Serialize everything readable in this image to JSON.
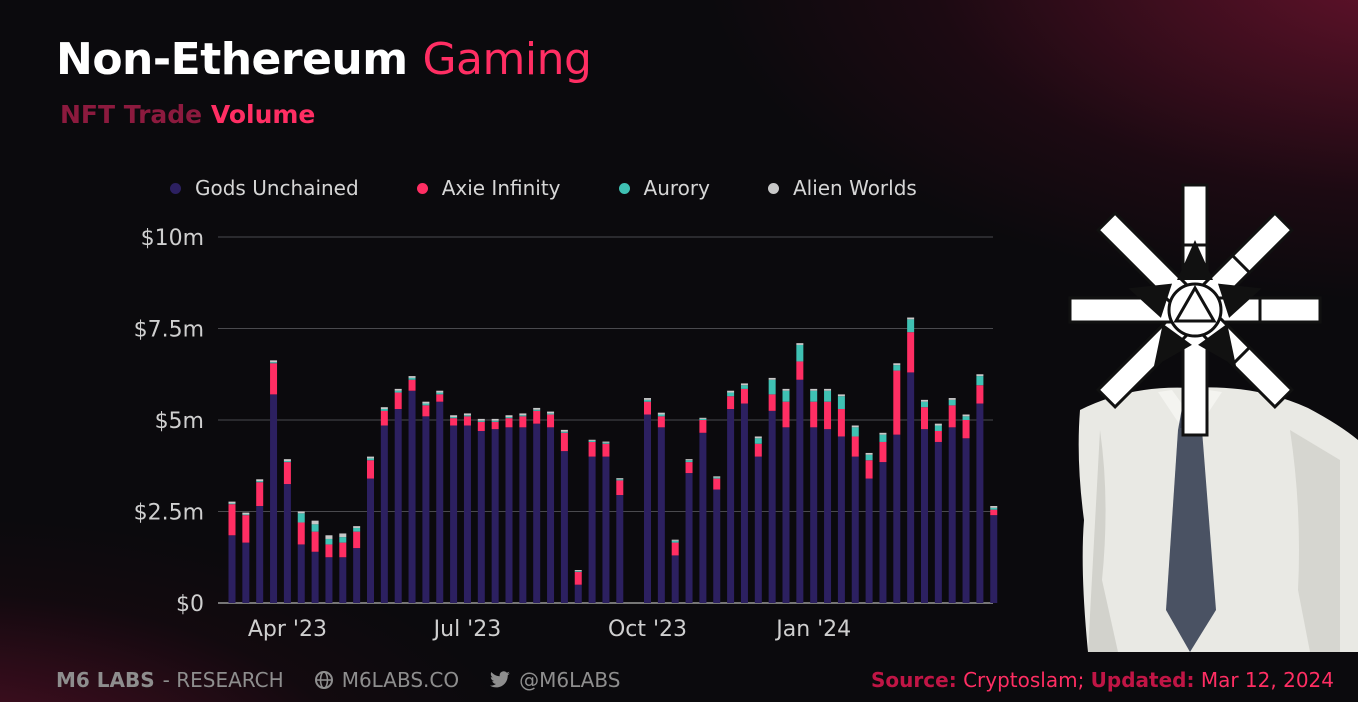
{
  "header": {
    "title_main": "Non-Ethereum",
    "title_accent": "Gaming",
    "subtitle_main": "NFT Trade",
    "subtitle_accent": "Volume"
  },
  "colors": {
    "gods_unchained": "#2c2060",
    "axie_infinity": "#ff2e63",
    "aurory": "#3fc1b3",
    "alien_worlds": "#c8c8c8"
  },
  "footer": {
    "brand": "M6 LABS",
    "brand_suffix": "- RESEARCH",
    "website": "M6LABS.CO",
    "twitter": "@M6LABS",
    "source_label": "Source:",
    "source_value": "Cryptoslam;",
    "updated_label": "Updated:",
    "updated_value": "Mar 12, 2024"
  },
  "mascot": {
    "icon": "star-head-figure-icon"
  },
  "chart_data": {
    "type": "bar",
    "stacked": true,
    "grid": true,
    "legend_position": "top",
    "ylim": [
      0,
      10
    ],
    "y_ticks": [
      {
        "value": 0,
        "label": "$0"
      },
      {
        "value": 2.5,
        "label": "$2.5m"
      },
      {
        "value": 5,
        "label": "$5m"
      },
      {
        "value": 7.5,
        "label": "$7.5m"
      },
      {
        "value": 10,
        "label": "$10m"
      }
    ],
    "x_ticks": [
      {
        "index": 4,
        "label": "Apr '23"
      },
      {
        "index": 17,
        "label": "Jul '23"
      },
      {
        "index": 30,
        "label": "Oct '23"
      },
      {
        "index": 42,
        "label": "Jan '24"
      }
    ],
    "series": [
      {
        "name": "Gods Unchained",
        "values": [
          1.85,
          1.65,
          2.65,
          5.7,
          3.25,
          1.6,
          1.4,
          1.25,
          1.25,
          1.5,
          3.4,
          4.85,
          5.3,
          5.8,
          5.1,
          5.5,
          4.85,
          4.85,
          4.7,
          4.75,
          4.8,
          4.8,
          4.9,
          4.8,
          4.15,
          0.5,
          4.0,
          4.0,
          2.95,
          0,
          5.15,
          4.8,
          1.3,
          3.55,
          4.65,
          3.1,
          5.3,
          5.45,
          4.0,
          5.25,
          4.8,
          6.1,
          4.8,
          4.75,
          4.55,
          4.0,
          3.4,
          3.85,
          4.6,
          6.3,
          4.75,
          4.4,
          4.8,
          4.5,
          5.45,
          2.4
        ]
      },
      {
        "name": "Axie Infinity",
        "values": [
          0.85,
          0.75,
          0.65,
          0.85,
          0.6,
          0.6,
          0.55,
          0.35,
          0.4,
          0.45,
          0.5,
          0.4,
          0.45,
          0.3,
          0.3,
          0.2,
          0.2,
          0.25,
          0.25,
          0.2,
          0.25,
          0.3,
          0.35,
          0.35,
          0.5,
          0.35,
          0.4,
          0.35,
          0.4,
          0,
          0.35,
          0.3,
          0.35,
          0.3,
          0.35,
          0.3,
          0.35,
          0.4,
          0.35,
          0.45,
          0.7,
          0.5,
          0.7,
          0.75,
          0.75,
          0.55,
          0.5,
          0.55,
          1.75,
          1.1,
          0.6,
          0.3,
          0.6,
          0.5,
          0.5,
          0.15
        ]
      },
      {
        "name": "Aurory",
        "values": [
          0.02,
          0.02,
          0.03,
          0.03,
          0.03,
          0.25,
          0.2,
          0.15,
          0.15,
          0.1,
          0.05,
          0.05,
          0.05,
          0.05,
          0.05,
          0.05,
          0.03,
          0.03,
          0.03,
          0.03,
          0.03,
          0.03,
          0.03,
          0.03,
          0.03,
          0.02,
          0.03,
          0.03,
          0.03,
          0,
          0.05,
          0.05,
          0.05,
          0.05,
          0.03,
          0.03,
          0.1,
          0.1,
          0.15,
          0.4,
          0.3,
          0.45,
          0.3,
          0.3,
          0.35,
          0.25,
          0.15,
          0.2,
          0.15,
          0.35,
          0.15,
          0.15,
          0.15,
          0.1,
          0.25,
          0.05
        ]
      },
      {
        "name": "Alien Worlds",
        "values": [
          0.05,
          0.05,
          0.05,
          0.05,
          0.05,
          0.05,
          0.1,
          0.1,
          0.1,
          0.05,
          0.05,
          0.05,
          0.05,
          0.05,
          0.05,
          0.05,
          0.05,
          0.05,
          0.05,
          0.05,
          0.05,
          0.05,
          0.05,
          0.05,
          0.05,
          0.03,
          0.03,
          0.03,
          0.03,
          0,
          0.05,
          0.05,
          0.03,
          0.03,
          0.03,
          0.03,
          0.05,
          0.05,
          0.05,
          0.05,
          0.05,
          0.05,
          0.05,
          0.05,
          0.05,
          0.05,
          0.05,
          0.05,
          0.05,
          0.05,
          0.05,
          0.05,
          0.05,
          0.05,
          0.05,
          0.05
        ]
      }
    ]
  }
}
